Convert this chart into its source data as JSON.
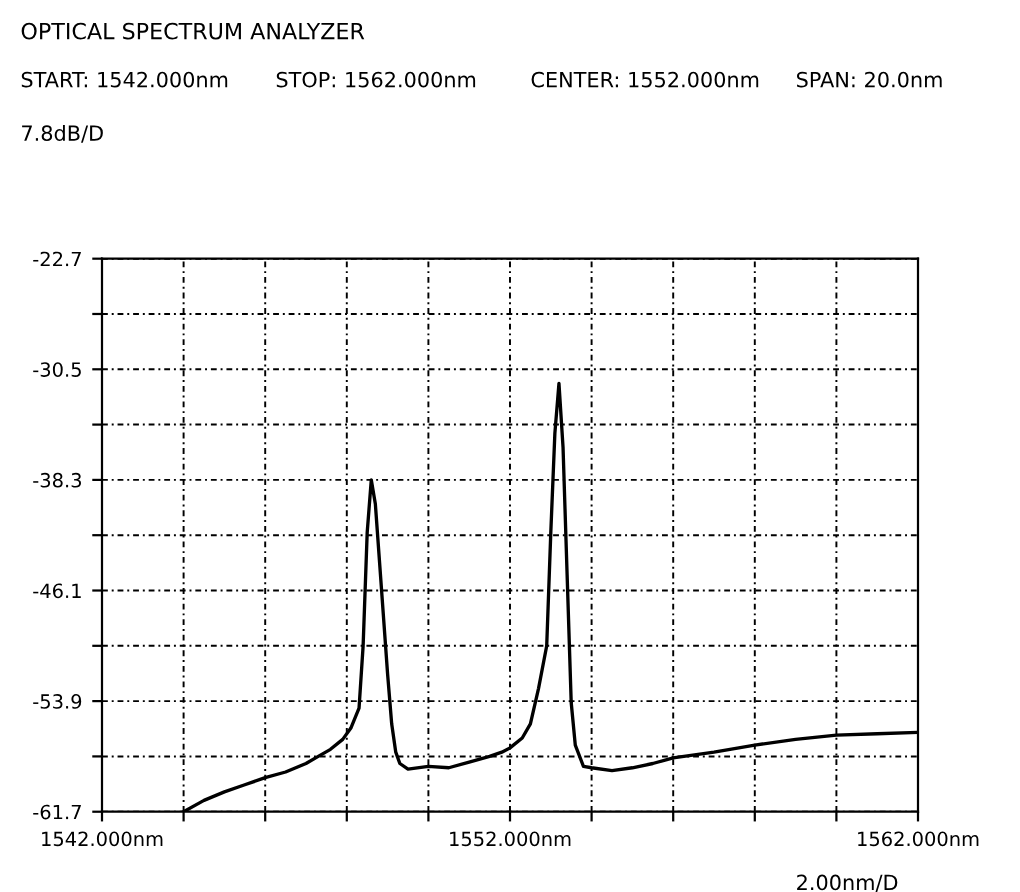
{
  "chart_data": {
    "type": "line",
    "title": "OPTICAL SPECTRUM ANALYZER",
    "annotations": [
      "START: 1542.000nm",
      "STOP: 1562.000nm",
      "CENTER: 1552.000nm",
      "SPAN: 20.0nm",
      "7.8dB/D",
      "2.00nm/D"
    ],
    "series": [
      {
        "color": "#000000",
        "x": [
          1544.0,
          1544.5,
          1545.0,
          1545.5,
          1546.0,
          1546.5,
          1547.0,
          1547.3,
          1547.6,
          1547.9,
          1548.1,
          1548.3,
          1548.4,
          1548.5,
          1548.6,
          1548.7,
          1548.8,
          1548.9,
          1549.0,
          1549.1,
          1549.2,
          1549.3,
          1549.5,
          1550.0,
          1550.5,
          1551.0,
          1551.5,
          1551.8,
          1552.0,
          1552.3,
          1552.5,
          1552.7,
          1552.9,
          1553.0,
          1553.1,
          1553.2,
          1553.3,
          1553.4,
          1553.5,
          1553.6,
          1553.8,
          1554.0,
          1554.5,
          1555.0,
          1555.5,
          1556.0,
          1557.0,
          1558.0,
          1559.0,
          1560.0,
          1561.0,
          1562.0
        ],
        "values": [
          -61.7,
          -60.9,
          -60.3,
          -59.8,
          -59.3,
          -58.9,
          -58.3,
          -57.8,
          -57.3,
          -56.6,
          -55.8,
          -54.4,
          -50.0,
          -42.0,
          -38.3,
          -40.0,
          -44.0,
          -48.0,
          -52.0,
          -55.5,
          -57.5,
          -58.3,
          -58.7,
          -58.5,
          -58.6,
          -58.2,
          -57.8,
          -57.5,
          -57.2,
          -56.5,
          -55.5,
          -53.0,
          -50.0,
          -42.0,
          -35.0,
          -31.5,
          -36.0,
          -45.0,
          -54.0,
          -57.0,
          -58.5,
          -58.6,
          -58.8,
          -58.6,
          -58.3,
          -57.9,
          -57.5,
          -57.0,
          -56.6,
          -56.3,
          -56.2,
          -56.1
        ]
      }
    ],
    "xlim": [
      1542,
      1562
    ],
    "xticks": [
      {
        "value": 1542,
        "label": "1542.000nm"
      },
      {
        "value": 1544,
        "label": null
      },
      {
        "value": 1546,
        "label": null
      },
      {
        "value": 1548,
        "label": null
      },
      {
        "value": 1550,
        "label": null
      },
      {
        "value": 1552,
        "label": "1552.000nm"
      },
      {
        "value": 1554,
        "label": null
      },
      {
        "value": 1556,
        "label": null
      },
      {
        "value": 1558,
        "label": null
      },
      {
        "value": 1560,
        "label": null
      },
      {
        "value": 1562,
        "label": "1562.000nm"
      }
    ],
    "ylim": [
      -61.7,
      -22.7
    ],
    "yticks": [
      {
        "value": -61.7,
        "label": "-61.7"
      },
      {
        "value": -57.8,
        "label": null
      },
      {
        "value": -53.9,
        "label": "-53.9"
      },
      {
        "value": -50.0,
        "label": null
      },
      {
        "value": -46.1,
        "label": "-46.1"
      },
      {
        "value": -42.2,
        "label": null
      },
      {
        "value": -38.3,
        "label": "-38.3"
      },
      {
        "value": -34.4,
        "label": null
      },
      {
        "value": -30.5,
        "label": "-30.5"
      },
      {
        "value": -26.6,
        "label": null
      },
      {
        "value": -22.7,
        "label": "-22.7"
      }
    ],
    "grid": true,
    "line_style": "solid",
    "marker": "none",
    "legend": false
  }
}
